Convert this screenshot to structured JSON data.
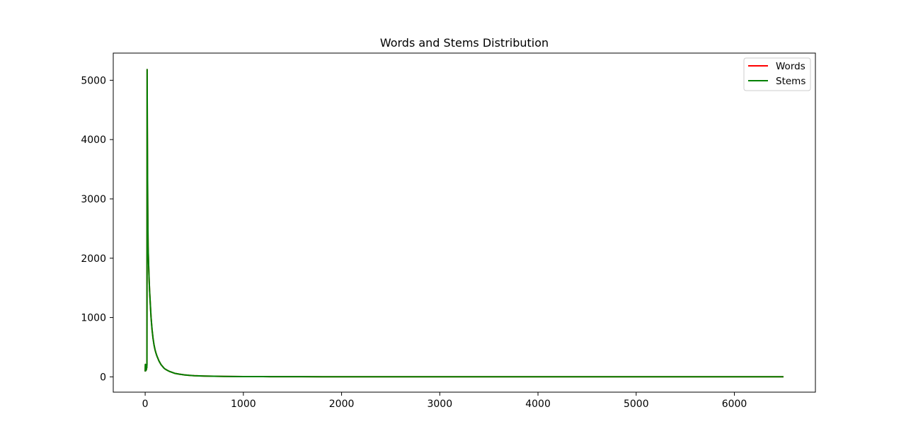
{
  "chart_data": {
    "type": "line",
    "title": "Words and Stems Distribution",
    "xlabel": "",
    "ylabel": "",
    "xlim": [
      -325,
      6825
    ],
    "ylim": [
      -258,
      5458
    ],
    "xticks": [
      0,
      1000,
      2000,
      3000,
      4000,
      5000,
      6000
    ],
    "yticks": [
      0,
      1000,
      2000,
      3000,
      4000,
      5000
    ],
    "grid": false,
    "legend": {
      "position": "top-right",
      "entries": [
        "Words",
        "Stems"
      ]
    },
    "series": [
      {
        "name": "Words",
        "color": "#ff0000",
        "x": [
          0,
          2,
          4,
          6,
          8,
          10,
          12,
          14,
          16,
          18,
          20,
          22,
          24,
          26,
          28,
          30,
          35,
          40,
          45,
          50,
          55,
          60,
          70,
          80,
          90,
          100,
          110,
          120,
          130,
          140,
          150,
          160,
          170,
          180,
          190,
          200,
          225,
          250,
          275,
          300,
          350,
          400,
          450,
          500,
          600,
          700,
          800,
          900,
          1000,
          1200,
          1400,
          1600,
          1800,
          2000,
          2500,
          3000,
          3500,
          4000,
          4500,
          5000,
          5500,
          6000,
          6500
        ],
        "values": [
          90,
          210,
          100,
          200,
          110,
          190,
          120,
          210,
          150,
          200,
          5180,
          4200,
          3500,
          2900,
          2500,
          2200,
          1900,
          1650,
          1450,
          1300,
          1150,
          1000,
          800,
          650,
          540,
          460,
          400,
          350,
          310,
          270,
          240,
          210,
          190,
          170,
          150,
          135,
          110,
          90,
          75,
          60,
          45,
          33,
          25,
          20,
          14,
          10,
          8,
          6,
          5,
          4,
          3,
          3,
          2,
          2,
          2,
          1,
          1,
          1,
          1,
          1,
          1,
          1,
          1
        ]
      },
      {
        "name": "Stems",
        "color": "#008000",
        "x": [
          0,
          2,
          4,
          6,
          8,
          10,
          12,
          14,
          16,
          18,
          20,
          22,
          24,
          26,
          28,
          30,
          35,
          40,
          45,
          50,
          55,
          60,
          70,
          80,
          90,
          100,
          110,
          120,
          130,
          140,
          150,
          160,
          170,
          180,
          190,
          200,
          225,
          250,
          275,
          300,
          350,
          400,
          450,
          500,
          600,
          700,
          800,
          900,
          1000,
          1200,
          1400,
          1600,
          1800,
          2000,
          2500,
          3000,
          3500,
          4000,
          4500,
          5000,
          5500,
          6000,
          6500
        ],
        "values": [
          90,
          210,
          100,
          200,
          110,
          190,
          120,
          210,
          150,
          200,
          5180,
          4200,
          3500,
          2900,
          2500,
          2200,
          1900,
          1650,
          1450,
          1300,
          1150,
          1000,
          800,
          650,
          540,
          460,
          400,
          350,
          310,
          270,
          240,
          210,
          190,
          170,
          150,
          135,
          110,
          90,
          75,
          60,
          45,
          33,
          25,
          20,
          14,
          10,
          8,
          6,
          5,
          4,
          3,
          3,
          2,
          2,
          2,
          1,
          1,
          1,
          1,
          1,
          1,
          1,
          1
        ]
      }
    ]
  }
}
